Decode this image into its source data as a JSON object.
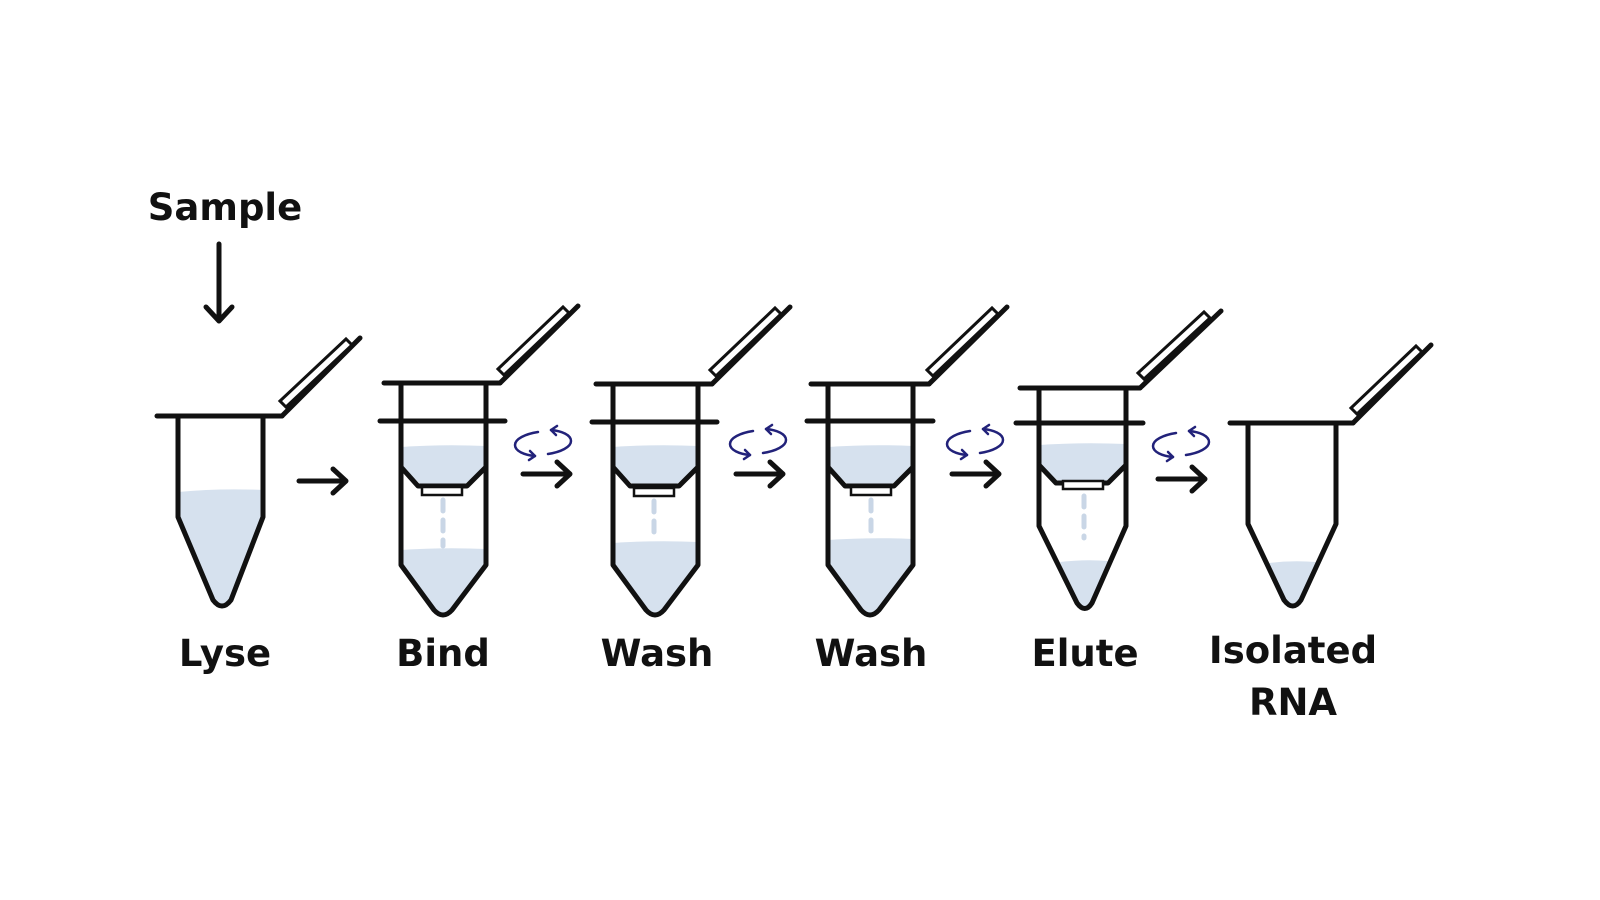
{
  "sample_label": "Sample",
  "steps": [
    {
      "label": "Lyse"
    },
    {
      "label": "Bind"
    },
    {
      "label": "Wash"
    },
    {
      "label": "Wash"
    },
    {
      "label": "Elute"
    },
    {
      "label": "Isolated\nRNA"
    }
  ],
  "colors": {
    "liquid": "#d6e1ee",
    "outline": "#111111",
    "spin_arrows": "#22227a",
    "drip": "#c9d6e6"
  },
  "icons": {
    "spin": "centrifuge-spin-icon",
    "step_arrow": "right-arrow-icon",
    "sample_arrow": "down-arrow-icon"
  }
}
